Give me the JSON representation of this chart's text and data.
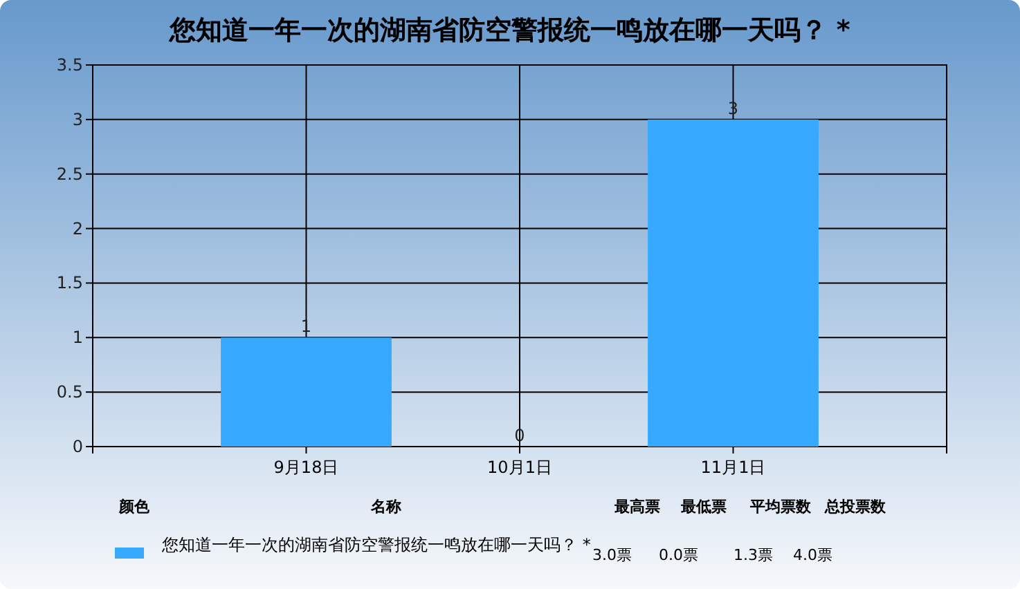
{
  "chart_data": {
    "type": "bar",
    "title": "您知道一年一次的湖南省防空警报统一鸣放在哪一天吗？ *",
    "categories": [
      "9月18日",
      "10月1日",
      "11月1日"
    ],
    "series": [
      {
        "name": "您知道一年一次的湖南省防空警报统一鸣放在哪一天吗？ *",
        "color": "#36a9fe",
        "values": [
          1,
          0,
          3
        ]
      }
    ],
    "ylim": [
      0,
      3.5
    ],
    "yticks": [
      0,
      0.5,
      1,
      1.5,
      2,
      2.5,
      3,
      3.5
    ],
    "grid": true,
    "data_labels": true,
    "legend": "bottom",
    "annotations": [
      "颜色",
      "名称",
      "最高票",
      "最低票",
      "平均票数",
      "总投票数",
      "3.0票",
      "0.0票",
      "1.3票",
      "4.0票"
    ]
  }
}
